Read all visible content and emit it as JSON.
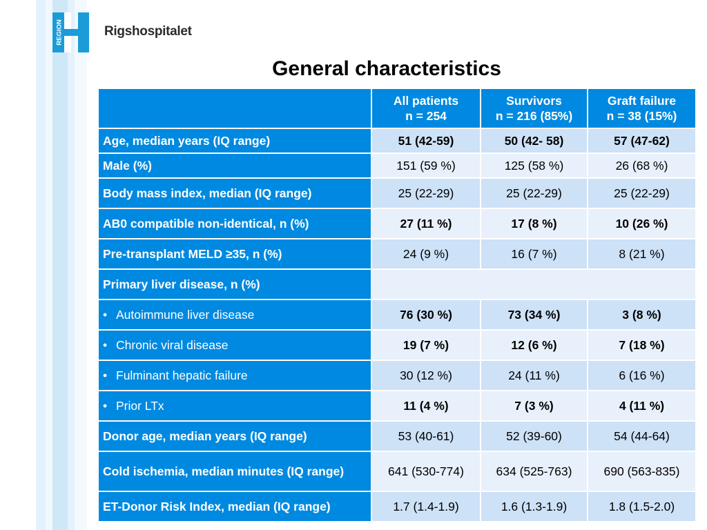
{
  "brand": {
    "logo_text": "REGION",
    "name": "Rigshospitalet",
    "colors": {
      "logo": "#1b9cd8",
      "table_header": "#0089e0"
    }
  },
  "title": "General characteristics",
  "columns": [
    {
      "label": "All patients",
      "sub": "n = 254"
    },
    {
      "label": "Survivors",
      "sub": "n = 216 (85%)"
    },
    {
      "label": "Graft failure",
      "sub": "n = 38 (15%)"
    }
  ],
  "rows": [
    {
      "label": "Age, median years (IQ range)",
      "values": [
        "51 (42-59)",
        "50 (42- 58)",
        "57 (47-62)"
      ]
    },
    {
      "label": "Male (%)",
      "values": [
        "151 (59 %)",
        "125 (58 %)",
        "26 (68 %)"
      ]
    },
    {
      "label": "Body mass index, median (IQ range)",
      "values": [
        "25 (22-29)",
        "25 (22-29)",
        "25 (22-29)"
      ]
    },
    {
      "label": "AB0 compatible non-identical, n (%)",
      "values": [
        "27 (11 %)",
        "17 (8 %)",
        "10 (26 %)"
      ]
    },
    {
      "label": "Pre-transplant MELD ≥35, n (%)",
      "values": [
        "24 (9 %)",
        "16 (7 %)",
        "8 (21 %)"
      ]
    },
    {
      "label": "Primary liver disease, n (%)"
    },
    {
      "label": "Autoimmune liver disease",
      "values": [
        "76 (30 %)",
        "73 (34 %)",
        "3 (8 %)"
      ]
    },
    {
      "label": "Chronic viral disease",
      "values": [
        "19 (7 %)",
        "12 (6 %)",
        "7 (18 %)"
      ]
    },
    {
      "label": "Fulminant hepatic failure",
      "values": [
        "30 (12 %)",
        "24 (11 %)",
        "6 (16 %)"
      ]
    },
    {
      "label": "Prior LTx",
      "values": [
        "11 (4 %)",
        "7 (3 %)",
        "4 (11 %)"
      ]
    },
    {
      "label": "Donor  age, median years (IQ range)",
      "values": [
        "53 (40-61)",
        "52 (39-60)",
        "54 (44-64)"
      ]
    },
    {
      "label": "Cold ischemia, median minutes (IQ range)",
      "values": [
        "641 (530-774)",
        "634 (525-763)",
        "690 (563-835)"
      ]
    },
    {
      "label": "ET-Donor Risk Index, median (IQ range)",
      "values": [
        "1.7 (1.4-1.9)",
        "1.6 (1.3-1.9)",
        "1.8 (1.5-2.0)"
      ]
    }
  ]
}
